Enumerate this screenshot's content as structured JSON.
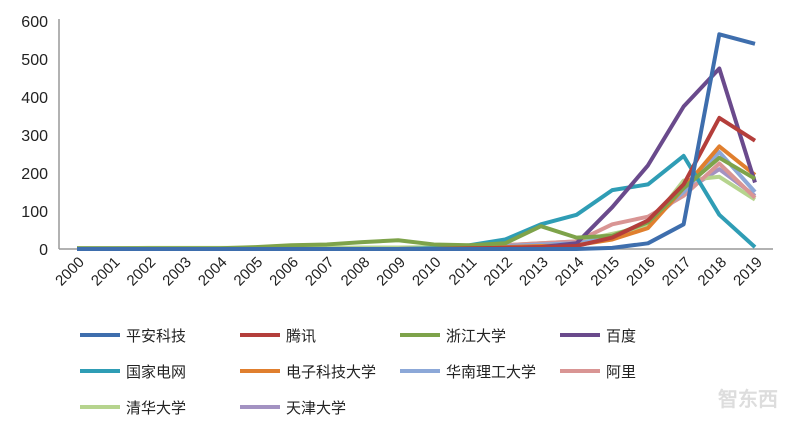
{
  "chart_data": {
    "type": "line",
    "title": "",
    "xlabel": "",
    "ylabel": "",
    "ylim": [
      0,
      600
    ],
    "yticks": [
      0,
      100,
      200,
      300,
      400,
      500,
      600
    ],
    "x": [
      "2000",
      "2001",
      "2002",
      "2003",
      "2004",
      "2005",
      "2006",
      "2007",
      "2008",
      "2009",
      "2010",
      "2011",
      "2012",
      "2013",
      "2014",
      "2015",
      "2016",
      "2017",
      "2018",
      "2019"
    ],
    "grid": false,
    "legend_position": "bottom",
    "series": [
      {
        "name": "平安科技",
        "color": "#3E6EAD",
        "values": [
          0,
          0,
          0,
          0,
          0,
          0,
          0,
          0,
          0,
          0,
          0,
          0,
          0,
          0,
          0,
          3,
          15,
          65,
          565,
          540
        ]
      },
      {
        "name": "腾讯",
        "color": "#B43E3B",
        "values": [
          0,
          0,
          0,
          0,
          0,
          0,
          0,
          0,
          0,
          0,
          0,
          2,
          3,
          5,
          8,
          30,
          75,
          170,
          345,
          285
        ]
      },
      {
        "name": "浙江大学",
        "color": "#7EA34A",
        "values": [
          2,
          2,
          2,
          2,
          2,
          5,
          10,
          12,
          18,
          23,
          12,
          10,
          15,
          60,
          30,
          35,
          70,
          160,
          240,
          185
        ]
      },
      {
        "name": "百度",
        "color": "#6A4A8C",
        "values": [
          0,
          0,
          0,
          0,
          0,
          0,
          0,
          0,
          0,
          0,
          0,
          2,
          3,
          5,
          15,
          110,
          220,
          375,
          475,
          175
        ]
      },
      {
        "name": "国家电网",
        "color": "#2F9DB5",
        "values": [
          0,
          0,
          0,
          0,
          0,
          0,
          0,
          0,
          0,
          0,
          2,
          10,
          25,
          65,
          90,
          155,
          170,
          245,
          90,
          5
        ]
      },
      {
        "name": "电子科技大学",
        "color": "#E07F2E",
        "values": [
          0,
          0,
          0,
          0,
          0,
          0,
          0,
          0,
          0,
          0,
          2,
          3,
          5,
          8,
          10,
          25,
          55,
          160,
          270,
          195
        ]
      },
      {
        "name": "华南理工大学",
        "color": "#8CA8D8",
        "values": [
          0,
          0,
          0,
          0,
          0,
          0,
          0,
          0,
          0,
          0,
          2,
          5,
          8,
          12,
          15,
          30,
          75,
          150,
          255,
          150
        ]
      },
      {
        "name": "阿里",
        "color": "#D99594",
        "values": [
          0,
          0,
          0,
          0,
          0,
          0,
          0,
          0,
          0,
          0,
          2,
          5,
          10,
          15,
          20,
          65,
          85,
          140,
          225,
          135
        ]
      },
      {
        "name": "清华大学",
        "color": "#B6D48E",
        "values": [
          2,
          2,
          3,
          3,
          3,
          3,
          3,
          3,
          4,
          4,
          5,
          8,
          10,
          15,
          20,
          40,
          60,
          180,
          190,
          130
        ]
      },
      {
        "name": "天津大学",
        "color": "#A392C2",
        "values": [
          2,
          2,
          2,
          2,
          2,
          2,
          2,
          2,
          2,
          2,
          3,
          5,
          8,
          12,
          15,
          30,
          65,
          150,
          210,
          140
        ]
      }
    ]
  },
  "watermark": "智东西"
}
